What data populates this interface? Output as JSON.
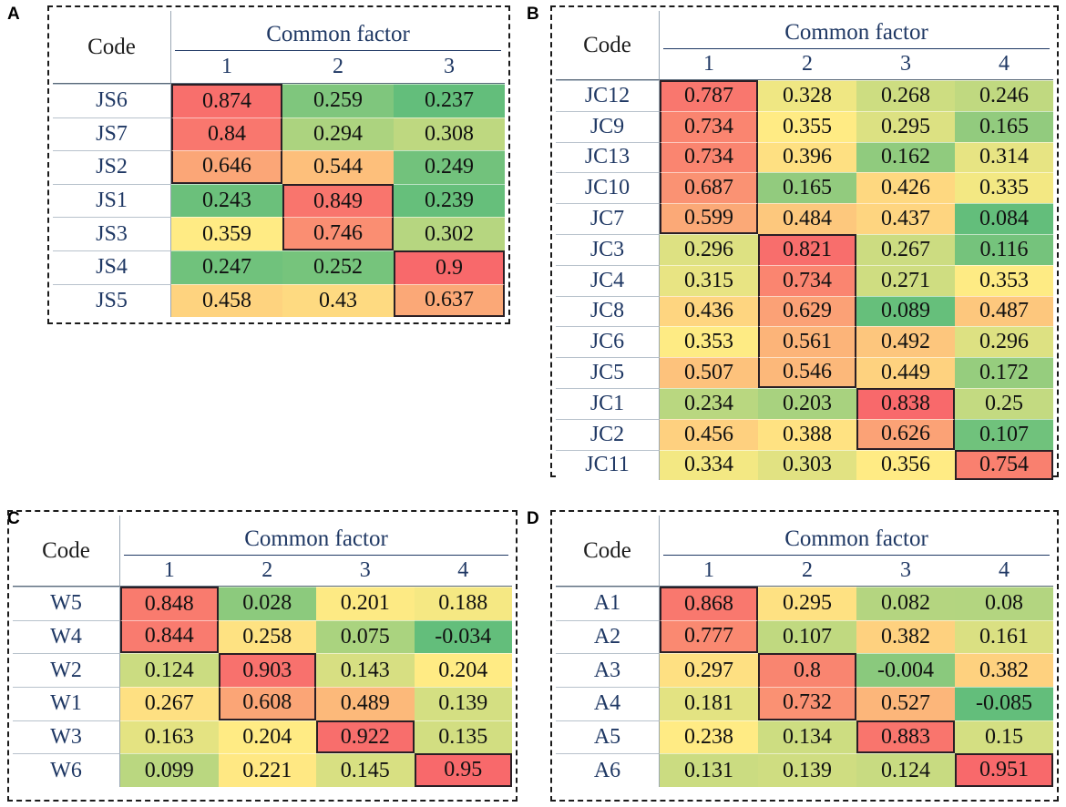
{
  "chart_data": [
    {
      "type": "table",
      "label": "A",
      "code_header": "Code",
      "group_header": "Common factor",
      "factors": [
        "1",
        "2",
        "3"
      ],
      "rows": [
        {
          "code": "JS6",
          "values": [
            "0.874",
            "0.259",
            "0.237"
          ],
          "factor": 1
        },
        {
          "code": "JS7",
          "values": [
            "0.84",
            "0.294",
            "0.308"
          ],
          "factor": 1
        },
        {
          "code": "JS2",
          "values": [
            "0.646",
            "0.544",
            "0.249"
          ],
          "factor": 1
        },
        {
          "code": "JS1",
          "values": [
            "0.243",
            "0.849",
            "0.239"
          ],
          "factor": 2
        },
        {
          "code": "JS3",
          "values": [
            "0.359",
            "0.746",
            "0.302"
          ],
          "factor": 2
        },
        {
          "code": "JS4",
          "values": [
            "0.247",
            "0.252",
            "0.9"
          ],
          "factor": 3
        },
        {
          "code": "JS5",
          "values": [
            "0.458",
            "0.43",
            "0.637"
          ],
          "factor": 3
        }
      ]
    },
    {
      "type": "table",
      "label": "B",
      "code_header": "Code",
      "group_header": "Common factor",
      "factors": [
        "1",
        "2",
        "3",
        "4"
      ],
      "rows": [
        {
          "code": "JC12",
          "values": [
            "0.787",
            "0.328",
            "0.268",
            "0.246"
          ],
          "factor": 1
        },
        {
          "code": "JC9",
          "values": [
            "0.734",
            "0.355",
            "0.295",
            "0.165"
          ],
          "factor": 1
        },
        {
          "code": "JC13",
          "values": [
            "0.734",
            "0.396",
            "0.162",
            "0.314"
          ],
          "factor": 1
        },
        {
          "code": "JC10",
          "values": [
            "0.687",
            "0.165",
            "0.426",
            "0.335"
          ],
          "factor": 1
        },
        {
          "code": "JC7",
          "values": [
            "0.599",
            "0.484",
            "0.437",
            "0.084"
          ],
          "factor": 1
        },
        {
          "code": "JC3",
          "values": [
            "0.296",
            "0.821",
            "0.267",
            "0.116"
          ],
          "factor": 2
        },
        {
          "code": "JC4",
          "values": [
            "0.315",
            "0.734",
            "0.271",
            "0.353"
          ],
          "factor": 2
        },
        {
          "code": "JC8",
          "values": [
            "0.436",
            "0.629",
            "0.089",
            "0.487"
          ],
          "factor": 2
        },
        {
          "code": "JC6",
          "values": [
            "0.353",
            "0.561",
            "0.492",
            "0.296"
          ],
          "factor": 2
        },
        {
          "code": "JC5",
          "values": [
            "0.507",
            "0.546",
            "0.449",
            "0.172"
          ],
          "factor": 2
        },
        {
          "code": "JC1",
          "values": [
            "0.234",
            "0.203",
            "0.838",
            "0.25"
          ],
          "factor": 3
        },
        {
          "code": "JC2",
          "values": [
            "0.456",
            "0.388",
            "0.626",
            "0.107"
          ],
          "factor": 3
        },
        {
          "code": "JC11",
          "values": [
            "0.334",
            "0.303",
            "0.356",
            "0.754"
          ],
          "factor": 4
        }
      ]
    },
    {
      "type": "table",
      "label": "C",
      "code_header": "Code",
      "group_header": "Common factor",
      "factors": [
        "1",
        "2",
        "3",
        "4"
      ],
      "rows": [
        {
          "code": "W5",
          "values": [
            "0.848",
            "0.028",
            "0.201",
            "0.188"
          ],
          "factor": 1
        },
        {
          "code": "W4",
          "values": [
            "0.844",
            "0.258",
            "0.075",
            "-0.034"
          ],
          "factor": 1
        },
        {
          "code": "W2",
          "values": [
            "0.124",
            "0.903",
            "0.143",
            "0.204"
          ],
          "factor": 2
        },
        {
          "code": "W1",
          "values": [
            "0.267",
            "0.608",
            "0.489",
            "0.139"
          ],
          "factor": 2
        },
        {
          "code": "W3",
          "values": [
            "0.163",
            "0.204",
            "0.922",
            "0.135"
          ],
          "factor": 3
        },
        {
          "code": "W6",
          "values": [
            "0.099",
            "0.221",
            "0.145",
            "0.95"
          ],
          "factor": 4
        }
      ]
    },
    {
      "type": "table",
      "label": "D",
      "code_header": "Code",
      "group_header": "Common factor",
      "factors": [
        "1",
        "2",
        "3",
        "4"
      ],
      "rows": [
        {
          "code": "A1",
          "values": [
            "0.868",
            "0.295",
            "0.082",
            "0.08"
          ],
          "factor": 1
        },
        {
          "code": "A2",
          "values": [
            "0.777",
            "0.107",
            "0.382",
            "0.161"
          ],
          "factor": 1
        },
        {
          "code": "A3",
          "values": [
            "0.297",
            "0.8",
            "-0.004",
            "0.382"
          ],
          "factor": 2
        },
        {
          "code": "A4",
          "values": [
            "0.181",
            "0.732",
            "0.527",
            "-0.085"
          ],
          "factor": 2
        },
        {
          "code": "A5",
          "values": [
            "0.238",
            "0.134",
            "0.883",
            "0.15"
          ],
          "factor": 3
        },
        {
          "code": "A6",
          "values": [
            "0.131",
            "0.139",
            "0.124",
            "0.951"
          ],
          "factor": 4
        }
      ]
    }
  ],
  "colors": {
    "low": "#63be7b",
    "mid": "#ffeb84",
    "high": "#f8696b",
    "header_text": "#1f3864",
    "highlight_border": "#2a1f25"
  }
}
